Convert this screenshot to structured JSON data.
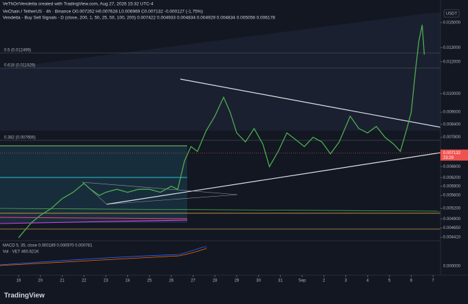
{
  "chart_data": {
    "type": "line",
    "title": "VeThOr/Vendetta created with TradingView.com, Aug 27, 2026 15:32 UTC-4",
    "subtitle": "VeChain / TetherUS · 4h · Binance  O0.007262 H0.007628 L0.006969 C0.007132 -0.000127 (-1.75%)",
    "indicator": "Vendetta - Buy Sell Signals - D (close, 200, 1, 50, 25, 50, 100, 200)  0.007422  0.004933  0.004834  0.004929  0.004834  0.005056  0.006178",
    "annotations": [
      "0.5 (0.012499)",
      "0.618 (0.011929)",
      "0.382 (0.007656)",
      "MACD 5, 35, close  0.000189  0.000970  0.000781",
      "Vol · VET  460.621K"
    ],
    "currency": "USDT",
    "last_price": {
      "value": 0.007132,
      "label": "0.007132"
    },
    "countdown": "23:29",
    "macd_zero": {
      "value": 0,
      "label": "0.000000"
    },
    "brand": "TradingView",
    "color": "#4caf50",
    "log_scale": true,
    "grid": false,
    "x": [
      0,
      0.3,
      0.6,
      1,
      1.5,
      2,
      2.5,
      3,
      3.3,
      3.7,
      4,
      4.5,
      5,
      5.5,
      6,
      6.5,
      7,
      7.3,
      7.6,
      7.9,
      8.2,
      8.6,
      9,
      9.4,
      9.7,
      10,
      10.4,
      10.8,
      11.2,
      11.5,
      11.9,
      12.3,
      12.7,
      13.1,
      13.5,
      13.9,
      14.3,
      14.7,
      15.2,
      15.6,
      16,
      16.4,
      16.8,
      17.2,
      17.5,
      17.8,
      18,
      18.2,
      18.35,
      18.5,
      18.6
    ],
    "values": [
      0.0044,
      0.0046,
      0.0048,
      0.005,
      0.0052,
      0.0055,
      0.0057,
      0.006,
      0.0058,
      0.0056,
      0.0057,
      0.0058,
      0.0057,
      0.0058,
      0.0058,
      0.0057,
      0.0059,
      0.0058,
      0.0068,
      0.0074,
      0.0072,
      0.0081,
      0.0088,
      0.0098,
      0.009,
      0.008,
      0.0076,
      0.0082,
      0.0075,
      0.0066,
      0.0072,
      0.008,
      0.0077,
      0.0074,
      0.0078,
      0.0076,
      0.0071,
      0.0076,
      0.0088,
      0.0082,
      0.008,
      0.0083,
      0.0078,
      0.0075,
      0.0072,
      0.0082,
      0.009,
      0.0115,
      0.0135,
      0.0148,
      0.0125
    ],
    "xlim": [
      -0.85,
      19.34
    ],
    "xticks": [
      {
        "value": 0,
        "label": "19"
      },
      {
        "value": 1,
        "label": "20"
      },
      {
        "value": 2,
        "label": "21"
      },
      {
        "value": 3,
        "label": "22"
      },
      {
        "value": 4,
        "label": "23"
      },
      {
        "value": 5,
        "label": "24"
      },
      {
        "value": 6,
        "label": "25"
      },
      {
        "value": 7,
        "label": "26"
      },
      {
        "value": 8,
        "label": "27"
      },
      {
        "value": 9,
        "label": "28"
      },
      {
        "value": 10,
        "label": "29"
      },
      {
        "value": 11,
        "label": "30"
      },
      {
        "value": 12,
        "label": "31"
      },
      {
        "value": 13,
        "label": "Sep"
      },
      {
        "value": 14,
        "label": "2"
      },
      {
        "value": 15,
        "label": "3"
      },
      {
        "value": 16,
        "label": "4"
      },
      {
        "value": 17,
        "label": "5"
      },
      {
        "value": 18,
        "label": "6"
      },
      {
        "value": 19,
        "label": "7"
      }
    ],
    "ylim": [
      0.00436,
      0.0159
    ],
    "yticks": [
      {
        "value": 0.015,
        "label": "0.015000"
      },
      {
        "value": 0.013,
        "label": "0.013000"
      },
      {
        "value": 0.012,
        "label": "0.012000"
      },
      {
        "value": 0.01,
        "label": "0.010000"
      },
      {
        "value": 0.009,
        "label": "0.009000"
      },
      {
        "value": 0.0084,
        "label": "0.008400"
      },
      {
        "value": 0.0078,
        "label": "0.007800"
      },
      {
        "value": 0.0066,
        "label": "0.006600"
      },
      {
        "value": 0.0062,
        "label": "0.006200"
      },
      {
        "value": 0.0059,
        "label": "0.005900"
      },
      {
        "value": 0.0056,
        "label": "0.005600"
      },
      {
        "value": 0.0052,
        "label": "0.005200"
      },
      {
        "value": 0.0049,
        "label": "0.004900"
      },
      {
        "value": 0.00465,
        "label": "0.004650"
      },
      {
        "value": 0.00441,
        "label": "0.004410"
      }
    ]
  }
}
